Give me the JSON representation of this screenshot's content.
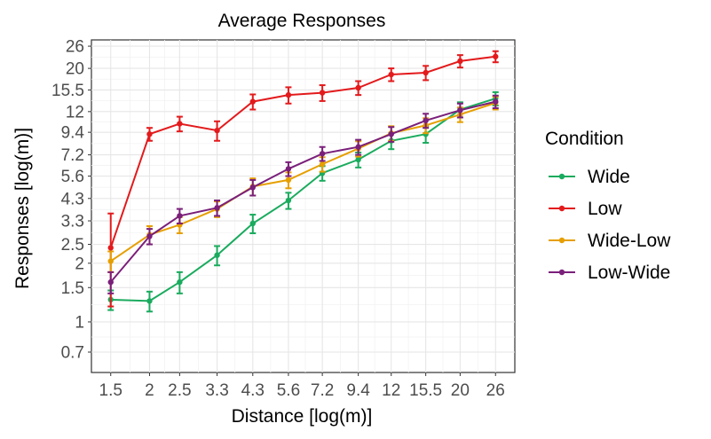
{
  "chart_data": {
    "type": "line",
    "title": "Average Responses",
    "xlabel": "Distance [log(m)]",
    "ylabel": "Responses [log(m)]",
    "x_scale": "log",
    "y_scale": "log",
    "x": [
      1.5,
      2,
      2.5,
      3.3,
      4.3,
      5.6,
      7.2,
      9.4,
      12,
      15.5,
      20,
      26
    ],
    "x_tick_labels": [
      "1.5",
      "2",
      "2.5",
      "3.3",
      "4.3",
      "5.6",
      "7.2",
      "9.4",
      "12",
      "15.5",
      "20",
      "26"
    ],
    "y_ticks": [
      0.7,
      1,
      1.5,
      2,
      2.5,
      3.3,
      4.3,
      5.6,
      7.2,
      9.4,
      12,
      15.5,
      20,
      26
    ],
    "y_tick_labels": [
      "0.7",
      "1",
      "1.5",
      "2",
      "2.5",
      "3.3",
      "4.3",
      "5.6",
      "7.2",
      "9.4",
      "12",
      "15.5",
      "20",
      "26"
    ],
    "ylim": [
      0.55,
      28
    ],
    "xlim": [
      1.3,
      30
    ],
    "grid": true,
    "legend": {
      "title": "Condition",
      "position": "right"
    },
    "series": [
      {
        "name": "Wide",
        "color": "#1aab5e",
        "values": [
          1.3,
          1.28,
          1.6,
          2.2,
          3.2,
          4.2,
          5.8,
          6.8,
          8.5,
          9.2,
          12.3,
          14.0
        ],
        "errors": [
          0.15,
          0.15,
          0.2,
          0.25,
          0.35,
          0.4,
          0.5,
          0.6,
          0.8,
          0.9,
          1.1,
          1.1
        ]
      },
      {
        "name": "Low",
        "color": "#e31a1c",
        "values": [
          2.4,
          9.2,
          10.4,
          9.6,
          13.5,
          14.6,
          15.0,
          15.9,
          18.6,
          19.0,
          21.8,
          23.0
        ],
        "errors": [
          1.2,
          0.7,
          0.9,
          1.1,
          1.2,
          1.4,
          1.4,
          1.3,
          1.4,
          1.6,
          1.6,
          1.5
        ]
      },
      {
        "name": "Wide-Low",
        "color": "#e69f00",
        "values": [
          2.05,
          2.8,
          3.15,
          3.8,
          4.95,
          5.35,
          6.45,
          7.75,
          9.3,
          10.2,
          11.6,
          13.3
        ],
        "errors": [
          0.25,
          0.3,
          0.3,
          0.35,
          0.5,
          0.5,
          0.55,
          0.7,
          0.8,
          0.9,
          1.0,
          1.0
        ]
      },
      {
        "name": "Low-Wide",
        "color": "#7a1f7a",
        "values": [
          1.6,
          2.75,
          3.5,
          3.85,
          4.9,
          6.1,
          7.3,
          7.9,
          9.2,
          10.8,
          12.2,
          13.5
        ],
        "errors": [
          0.2,
          0.25,
          0.3,
          0.35,
          0.45,
          0.5,
          0.6,
          0.7,
          0.8,
          0.9,
          1.0,
          1.0
        ]
      }
    ]
  }
}
